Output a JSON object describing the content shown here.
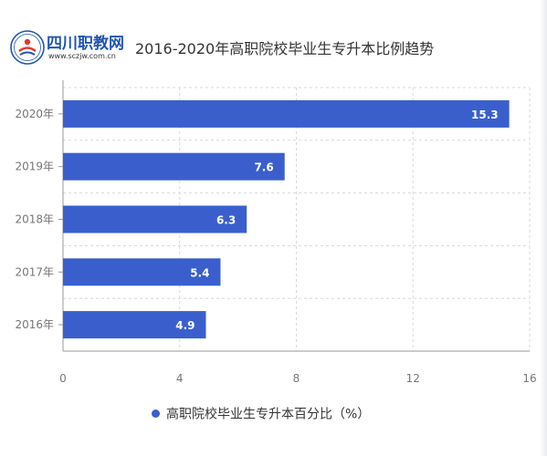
{
  "brand": {
    "name": "四川职教网",
    "url": "www.sczjw.com.cn",
    "emblem_icon": "sczjw-emblem",
    "primary_color": "#1f56b4",
    "accent_color": "#e03a2e"
  },
  "chart_data": {
    "type": "bar",
    "orientation": "horizontal",
    "title": "2016-2020年高职院校毕业生专升本比例趋势",
    "categories": [
      "2020年",
      "2019年",
      "2018年",
      "2017年",
      "2016年"
    ],
    "series": [
      {
        "name": "高职院校毕业生专升本百分比（%）",
        "values": [
          15.3,
          7.6,
          6.3,
          5.4,
          4.9
        ],
        "color": "#3a5fcd"
      }
    ],
    "xlim": [
      0,
      16
    ],
    "xticks": [
      "0",
      "4",
      "8",
      "12",
      "16"
    ],
    "grid": true,
    "data_labels": true,
    "legend_position": "bottom"
  }
}
